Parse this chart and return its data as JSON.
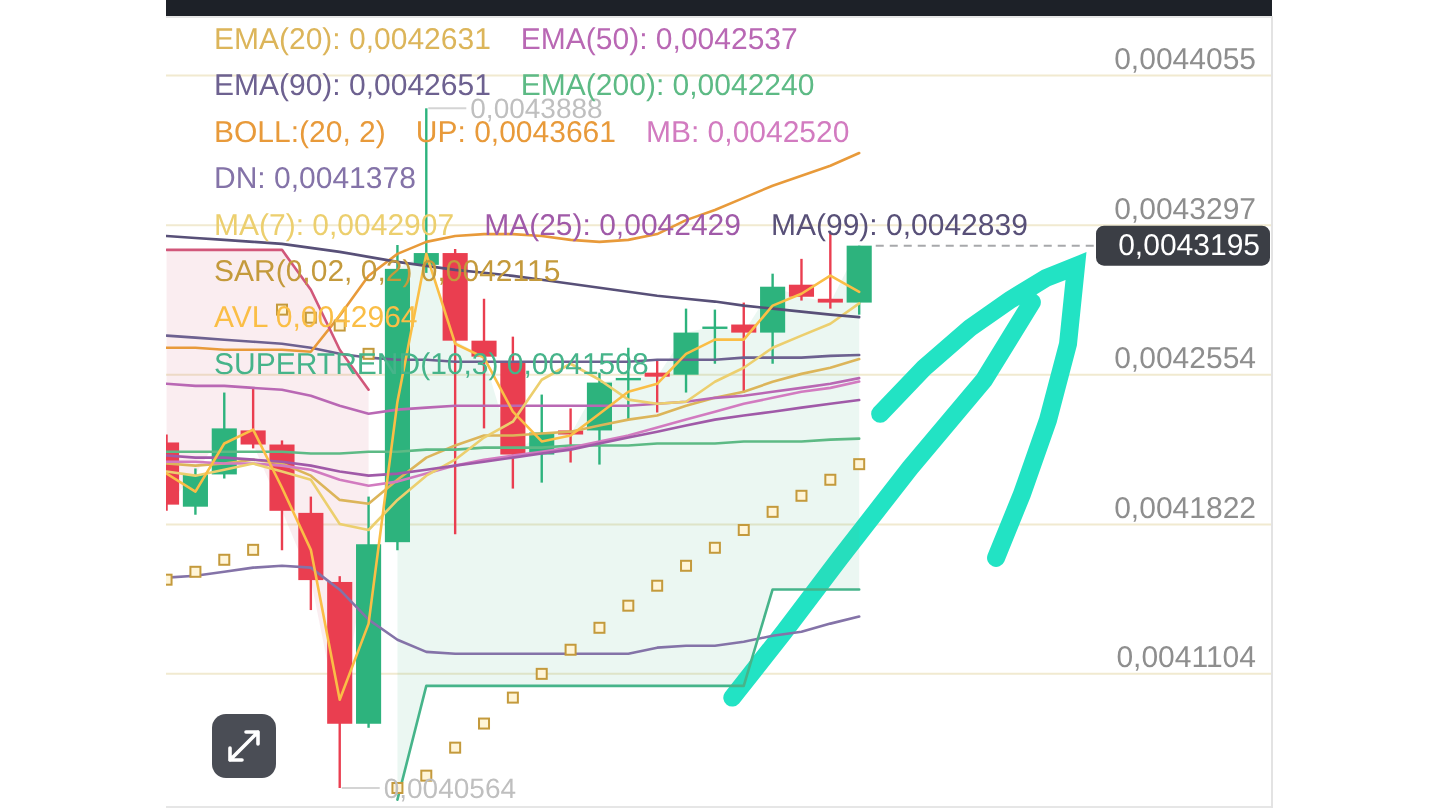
{
  "chart_data": {
    "type": "candlestick",
    "categories": [
      null,
      null,
      null,
      null,
      null,
      null,
      null,
      null,
      null,
      null,
      null,
      null,
      null,
      null,
      null,
      null,
      null,
      null,
      null,
      null,
      null,
      null,
      null,
      null,
      null
    ],
    "ohlc": [
      [
        0.0042221,
        0.004226,
        0.0041888,
        0.0041918
      ],
      [
        0.0041908,
        0.0042094,
        0.0041869,
        0.0042065
      ],
      [
        0.0042065,
        0.0042466,
        0.0042045,
        0.004229
      ],
      [
        0.004228,
        0.0042485,
        0.0042192,
        0.0042211
      ],
      [
        0.0042211,
        0.0042231,
        0.0041697,
        0.0041888
      ],
      [
        0.0041878,
        0.0041957,
        0.0041409,
        0.0041553
      ],
      [
        0.0041544,
        0.0041572,
        0.0040564,
        0.0040867
      ],
      [
        0.0040867,
        0.0041957,
        0.0040848,
        0.0041726
      ],
      [
        0.0041736,
        0.0043198,
        0.0041697,
        0.0043079
      ],
      [
        0.0043099,
        0.0043888,
        0.0043059,
        0.0043158
      ],
      [
        0.0043158,
        0.0043178,
        0.0041774,
        0.0042722
      ],
      [
        0.0042722,
        0.004293,
        0.004229,
        0.0042643
      ],
      [
        0.0042613,
        0.0042742,
        0.0041996,
        0.0042162
      ],
      [
        0.0042162,
        0.0042456,
        0.0042025,
        0.004227
      ],
      [
        0.004228,
        0.0042388,
        0.0042123,
        0.004226
      ],
      [
        0.004228,
        0.0042564,
        0.0042113,
        0.0042515
      ],
      [
        0.0042529,
        0.0042687,
        0.0042333,
        0.0042538
      ],
      [
        0.0042564,
        0.0042628,
        0.0042368,
        0.0042544
      ],
      [
        0.0042554,
        0.0042881,
        0.0042466,
        0.0042762
      ],
      [
        0.0042782,
        0.0042876,
        0.0042608,
        0.0042792
      ],
      [
        0.0042802,
        0.0042911,
        0.0042466,
        0.0042762
      ],
      [
        0.0042762,
        0.0043055,
        0.0042608,
        0.004299
      ],
      [
        0.0043,
        0.0043129,
        0.0042921,
        0.004294
      ],
      [
        0.004293,
        0.0043257,
        0.0042881,
        0.0042911
      ],
      [
        0.0042911,
        0.0043195,
        0.0042851,
        0.0043195
      ]
    ],
    "colors": [
      "#ea3e50",
      "#2db37d",
      "#2db37d",
      "#ea3e50",
      "#ea3e50",
      "#ea3e50",
      "#ea3e50",
      "#2db37d",
      "#2db37d",
      "#2db37d",
      "#ea3e50",
      "#ea3e50",
      "#ea3e50",
      "#2db37d",
      "#ea3e50",
      "#2db37d",
      "#2db37d",
      "#ea3e50",
      "#2db37d",
      "#2db37d",
      "#ea3e50",
      "#2db37d",
      "#ea3e50",
      "#ea3e50",
      "#2db37d"
    ],
    "series": [
      {
        "name": "EMA(20): 0,0042631",
        "type": "line",
        "color": "#dcb55a",
        "values": [
          0.0042118,
          0.0042108,
          0.0042118,
          0.0042137,
          0.0042118,
          0.0042059,
          0.0041941,
          0.0041922,
          0.0042039,
          0.0042147,
          0.0042206,
          0.0042255,
          0.0042255,
          0.0042265,
          0.0042274,
          0.0042304,
          0.0042333,
          0.0042353,
          0.0042401,
          0.004244,
          0.004247,
          0.0042519,
          0.0042558,
          0.0042588,
          0.0042631
        ]
      },
      {
        "name": "EMA(50): 0,0042537",
        "type": "line",
        "color": "#b968b4",
        "values": [
          0.0042509,
          0.0042499,
          0.0042499,
          0.0042489,
          0.004248,
          0.004245,
          0.0042401,
          0.0042362,
          0.0042382,
          0.0042392,
          0.0042401,
          0.0042401,
          0.0042401,
          0.0042401,
          0.0042401,
          0.0042401,
          0.0042401,
          0.0042411,
          0.0042421,
          0.004244,
          0.004245,
          0.004247,
          0.0042489,
          0.0042509,
          0.0042537
        ]
      },
      {
        "name": "EMA(90): 0,0042651",
        "type": "line",
        "color": "#6d6190",
        "values": [
          0.0042747,
          0.0042737,
          0.0042727,
          0.0042717,
          0.0042707,
          0.0042687,
          0.0042657,
          0.0042638,
          0.0042628,
          0.0042628,
          0.0042618,
          0.0042618,
          0.0042618,
          0.0042618,
          0.0042618,
          0.0042618,
          0.0042618,
          0.0042628,
          0.0042628,
          0.0042628,
          0.0042638,
          0.0042638,
          0.0042638,
          0.0042647,
          0.0042651
        ]
      },
      {
        "name": "EMA(200): 0,0042240",
        "type": "line",
        "color": "#5dba85",
        "values": [
          0.0042176,
          0.0042176,
          0.0042176,
          0.0042176,
          0.0042176,
          0.0042167,
          0.0042167,
          0.0042176,
          0.0042176,
          0.0042186,
          0.0042186,
          0.0042196,
          0.0042196,
          0.0042196,
          0.0042206,
          0.0042206,
          0.0042206,
          0.0042216,
          0.0042216,
          0.0042216,
          0.0042226,
          0.0042226,
          0.0042226,
          0.0042235,
          0.004224
        ]
      },
      {
        "name": "UP: 0,0043661",
        "type": "line",
        "color": "#e89a3a",
        "values": [
          0.0042687,
          0.0042687,
          0.0042677,
          0.0042677,
          0.0042677,
          0.0042667,
          0.0042846,
          0.0043045,
          0.0043154,
          0.0043214,
          0.0043243,
          0.0043253,
          0.0043253,
          0.0043243,
          0.0043224,
          0.0043214,
          0.0043224,
          0.0043253,
          0.0043323,
          0.0043374,
          0.0043435,
          0.0043496,
          0.0043546,
          0.0043597,
          0.0043661
        ]
      },
      {
        "name": "MB: 0,0042520",
        "type": "line",
        "color": "#d27bc0",
        "values": [
          0.0042127,
          0.0042127,
          0.0042118,
          0.0042118,
          0.0042108,
          0.0042088,
          0.0042039,
          0.004201,
          0.004203,
          0.0042069,
          0.0042108,
          0.0042137,
          0.0042157,
          0.0042176,
          0.0042196,
          0.0042226,
          0.0042255,
          0.0042294,
          0.0042333,
          0.0042372,
          0.0042411,
          0.004244,
          0.004247,
          0.0042489,
          0.004252
        ]
      },
      {
        "name": "DN: 0,0041378",
        "type": "line",
        "color": "#8473a8",
        "values": [
          0.0041565,
          0.0041574,
          0.0041593,
          0.0041613,
          0.0041622,
          0.0041613,
          0.0041507,
          0.0041363,
          0.0041267,
          0.0041209,
          0.00412,
          0.00412,
          0.00412,
          0.00412,
          0.00412,
          0.00412,
          0.00412,
          0.0041229,
          0.0041238,
          0.0041238,
          0.0041257,
          0.0041286,
          0.0041305,
          0.0041344,
          0.0041378
        ]
      },
      {
        "name": "MA(7): 0,0042907",
        "type": "line",
        "color": "#eccf6e",
        "values": [
          0.0042079,
          0.0042059,
          0.0042088,
          0.0042118,
          0.0042079,
          0.0042039,
          0.0041824,
          0.0041795,
          0.0041941,
          0.0042059,
          0.0042137,
          0.0042245,
          0.0042323,
          0.0042529,
          0.0042608,
          0.0042529,
          0.0042431,
          0.0042411,
          0.0042421,
          0.0042519,
          0.0042588,
          0.0042687,
          0.0042747,
          0.0042806,
          0.0042907
        ]
      },
      {
        "name": "MA(25): 0,0042429",
        "type": "line",
        "color": "#a05aa8",
        "values": [
          0.0042157,
          0.0042147,
          0.0042147,
          0.0042137,
          0.0042127,
          0.0042108,
          0.0042079,
          0.0042059,
          0.0042069,
          0.0042088,
          0.0042108,
          0.0042127,
          0.0042147,
          0.0042167,
          0.0042186,
          0.0042216,
          0.0042245,
          0.0042274,
          0.0042304,
          0.0042333,
          0.0042353,
          0.0042372,
          0.0042392,
          0.0042411,
          0.0042429
        ]
      },
      {
        "name": "MA(99): 0,0042839",
        "type": "line",
        "color": "#585078",
        "values": [
          0.0043243,
          0.0043233,
          0.0043224,
          0.0043214,
          0.0043204,
          0.0043184,
          0.0043164,
          0.0043139,
          0.0043114,
          0.0043094,
          0.0043074,
          0.004306,
          0.0043044,
          0.0043025,
          0.0043005,
          0.0042985,
          0.0042965,
          0.0042945,
          0.004293,
          0.0042916,
          0.0042896,
          0.0042881,
          0.0042866,
          0.0042851,
          0.0042839
        ]
      },
      {
        "name": "SAR(0,02, 0,2) 0,0042115",
        "type": "scatter",
        "marker": "square",
        "color": "#c49a3c",
        "values": [
          0.0041555,
          0.0041593,
          0.0041651,
          0.0041699,
          0.0042876,
          0.0042836,
          0.0042797,
          0.0042657,
          0.0040564,
          0.0040622,
          0.0040754,
          0.0040868,
          0.0040991,
          0.0041104,
          0.0041219,
          0.0041324,
          0.004143,
          0.0041526,
          0.0041622,
          0.0041709,
          0.0041795,
          0.0041883,
          0.0041961,
          0.0042039,
          0.0042115
        ]
      },
      {
        "name": "AVL 0,0042964",
        "type": "line",
        "color": "#fabe46",
        "values": [
          0.0042069,
          0.0041981,
          0.0042216,
          0.0042284,
          0.0042,
          0.0041699,
          0.0040981,
          0.0041344,
          0.0042421,
          0.0043154,
          0.0042707,
          0.0042638,
          0.0042372,
          0.0042226,
          0.0042255,
          0.0042362,
          0.004247,
          0.0042509,
          0.0042657,
          0.0042727,
          0.0042727,
          0.0042896,
          0.0042955,
          0.0043045,
          0.0042964
        ]
      },
      {
        "name": "SUPERTREND(10,3) 0,0041508",
        "type": "line",
        "color": "#46b48a",
        "values": [
          null,
          null,
          null,
          null,
          null,
          null,
          null,
          null,
          0.0040509,
          0.0041047,
          0.0041047,
          0.0041047,
          0.0041047,
          0.0041047,
          0.0041047,
          0.0041047,
          0.0041047,
          0.0041047,
          0.0041047,
          0.0041047,
          0.0041047,
          0.0041508,
          0.0041508,
          0.0041508,
          0.0041508
        ],
        "lower": [
          null,
          null,
          null,
          null,
          null,
          null,
          null,
          null,
          0.0040509,
          0.0041047,
          0.0041047,
          0.0041047,
          0.0041047,
          0.0041047,
          0.0041047,
          0.0041047,
          0.0041047,
          0.0041047,
          0.0041047,
          0.0041047,
          0.0041047,
          0.0041508,
          0.0041508,
          0.0041508,
          0.0041508
        ],
        "upper": [
          null,
          null,
          null,
          null,
          null,
          null,
          null,
          null,
          0.0043079,
          0.0043158,
          0.0042722,
          0.0042643,
          0.0042162,
          0.004227,
          0.004226,
          0.0042515,
          0.0042538,
          0.0042544,
          0.0042762,
          0.0042792,
          0.0042762,
          0.004299,
          0.004294,
          0.0042911,
          0.0043195
        ]
      },
      {
        "type": "line",
        "color": "#d1577a",
        "values": [
          0.0043174,
          0.0043174,
          0.0043174,
          0.0043174,
          0.0043174,
          0.0042975,
          0.0042677,
          0.004248,
          null,
          null,
          null,
          null,
          null,
          null,
          null,
          null,
          null,
          null,
          null,
          null,
          null,
          null,
          null,
          null,
          null
        ],
        "lower": [
          0.0041918,
          0.0042065,
          0.004229,
          0.0042211,
          0.0041888,
          0.0041553,
          0.0040867,
          0.0041726,
          null,
          null,
          null,
          null,
          null,
          null,
          null,
          null,
          null,
          null,
          null,
          null,
          null,
          null,
          null,
          null,
          null
        ],
        "upper": [
          0.0043174,
          0.0043174,
          0.0043174,
          0.0043174,
          0.0043174,
          0.0042975,
          0.0042677,
          0.004248,
          null,
          null,
          null,
          null,
          null,
          null,
          null,
          null,
          null,
          null,
          null,
          null,
          null,
          null,
          null,
          null,
          null
        ]
      }
    ],
    "ylim": [
      0.004047,
      0.004436
    ],
    "yticks": [
      {
        "value": 0.0041104,
        "label": "0,0041104"
      },
      {
        "value": 0.0041822,
        "label": "0,0041822"
      },
      {
        "value": 0.0042554,
        "label": "0,0042554"
      },
      {
        "value": 0.0043297,
        "label": "0,0043297"
      },
      {
        "value": 0.0044055,
        "label": "0,0044055"
      }
    ],
    "log": "y",
    "grid": "y",
    "legend": "top",
    "tick_labels": "y",
    "annotations": [
      "BOLL:(20, 2)",
      "0,0043888",
      "0,0040564"
    ],
    "ref_lines": [
      {
        "axis": "y",
        "value": 0.0043195,
        "label": "0,0043195",
        "line_style": "dashed",
        "color": "#3b3e45"
      }
    ]
  }
}
